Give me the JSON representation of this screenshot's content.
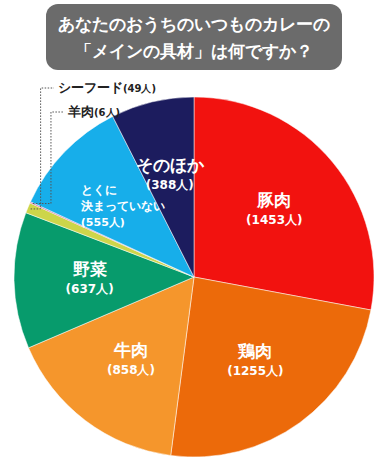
{
  "chart_data": {
    "type": "pie",
    "title": [
      "あなたのおうちのいつものカレーの",
      "「メインの具材」は何ですか？"
    ],
    "categories": [
      "豚肉",
      "鶏肉",
      "牛肉",
      "野菜",
      "シーフード",
      "羊肉",
      "とくに\n決まっていない",
      "そのほか"
    ],
    "values": [
      1453,
      1255,
      858,
      637,
      49,
      6,
      555,
      388
    ],
    "value_labels": [
      "(1453人)",
      "(1255人)",
      "(858人)",
      "(637人)",
      "(49人)",
      "(6人)",
      "(555人)",
      "(388人)"
    ],
    "colors": [
      "#f2120f",
      "#ec6a0a",
      "#f5962c",
      "#079b6c",
      "#cdd54a",
      "#cf5f9c",
      "#17aeea",
      "#1c1c5e"
    ],
    "data_labels": true
  }
}
